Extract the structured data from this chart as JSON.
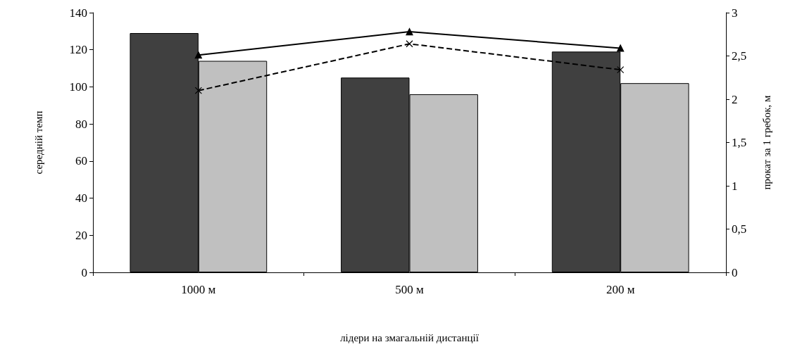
{
  "chart_data": {
    "type": "bar",
    "xlabel": "лідери на змагальній дистанції",
    "ylabel": "середній темп",
    "y2label": "прокат за 1 гребок, м",
    "categories": [
      "1000 м",
      "500 м",
      "200 м"
    ],
    "series": [
      {
        "color": "#404040",
        "values": [
          129,
          105,
          119
        ]
      },
      {
        "color": "#c0c0c0",
        "values": [
          114,
          96,
          102
        ]
      },
      {
        "type": "line",
        "axis": "y2",
        "color": "#000000",
        "marker": "triangle",
        "line_style": "solid",
        "values": [
          2.51,
          2.78,
          2.59
        ]
      },
      {
        "type": "line",
        "axis": "y2",
        "color": "#000000",
        "marker": "cross",
        "line_style": "dashed",
        "values": [
          2.1,
          2.64,
          2.34
        ]
      }
    ],
    "ylim": [
      0,
      140
    ],
    "yticks": [
      0,
      20,
      40,
      60,
      80,
      100,
      120,
      140
    ],
    "y2lim": [
      0,
      3
    ],
    "y2ticks": [
      0,
      {
        "value": 0.5,
        "label": "0,5"
      },
      1,
      {
        "value": 1.5,
        "label": "1,5"
      },
      2,
      {
        "value": 2.5,
        "label": "2,5"
      },
      3
    ],
    "grid": false
  }
}
